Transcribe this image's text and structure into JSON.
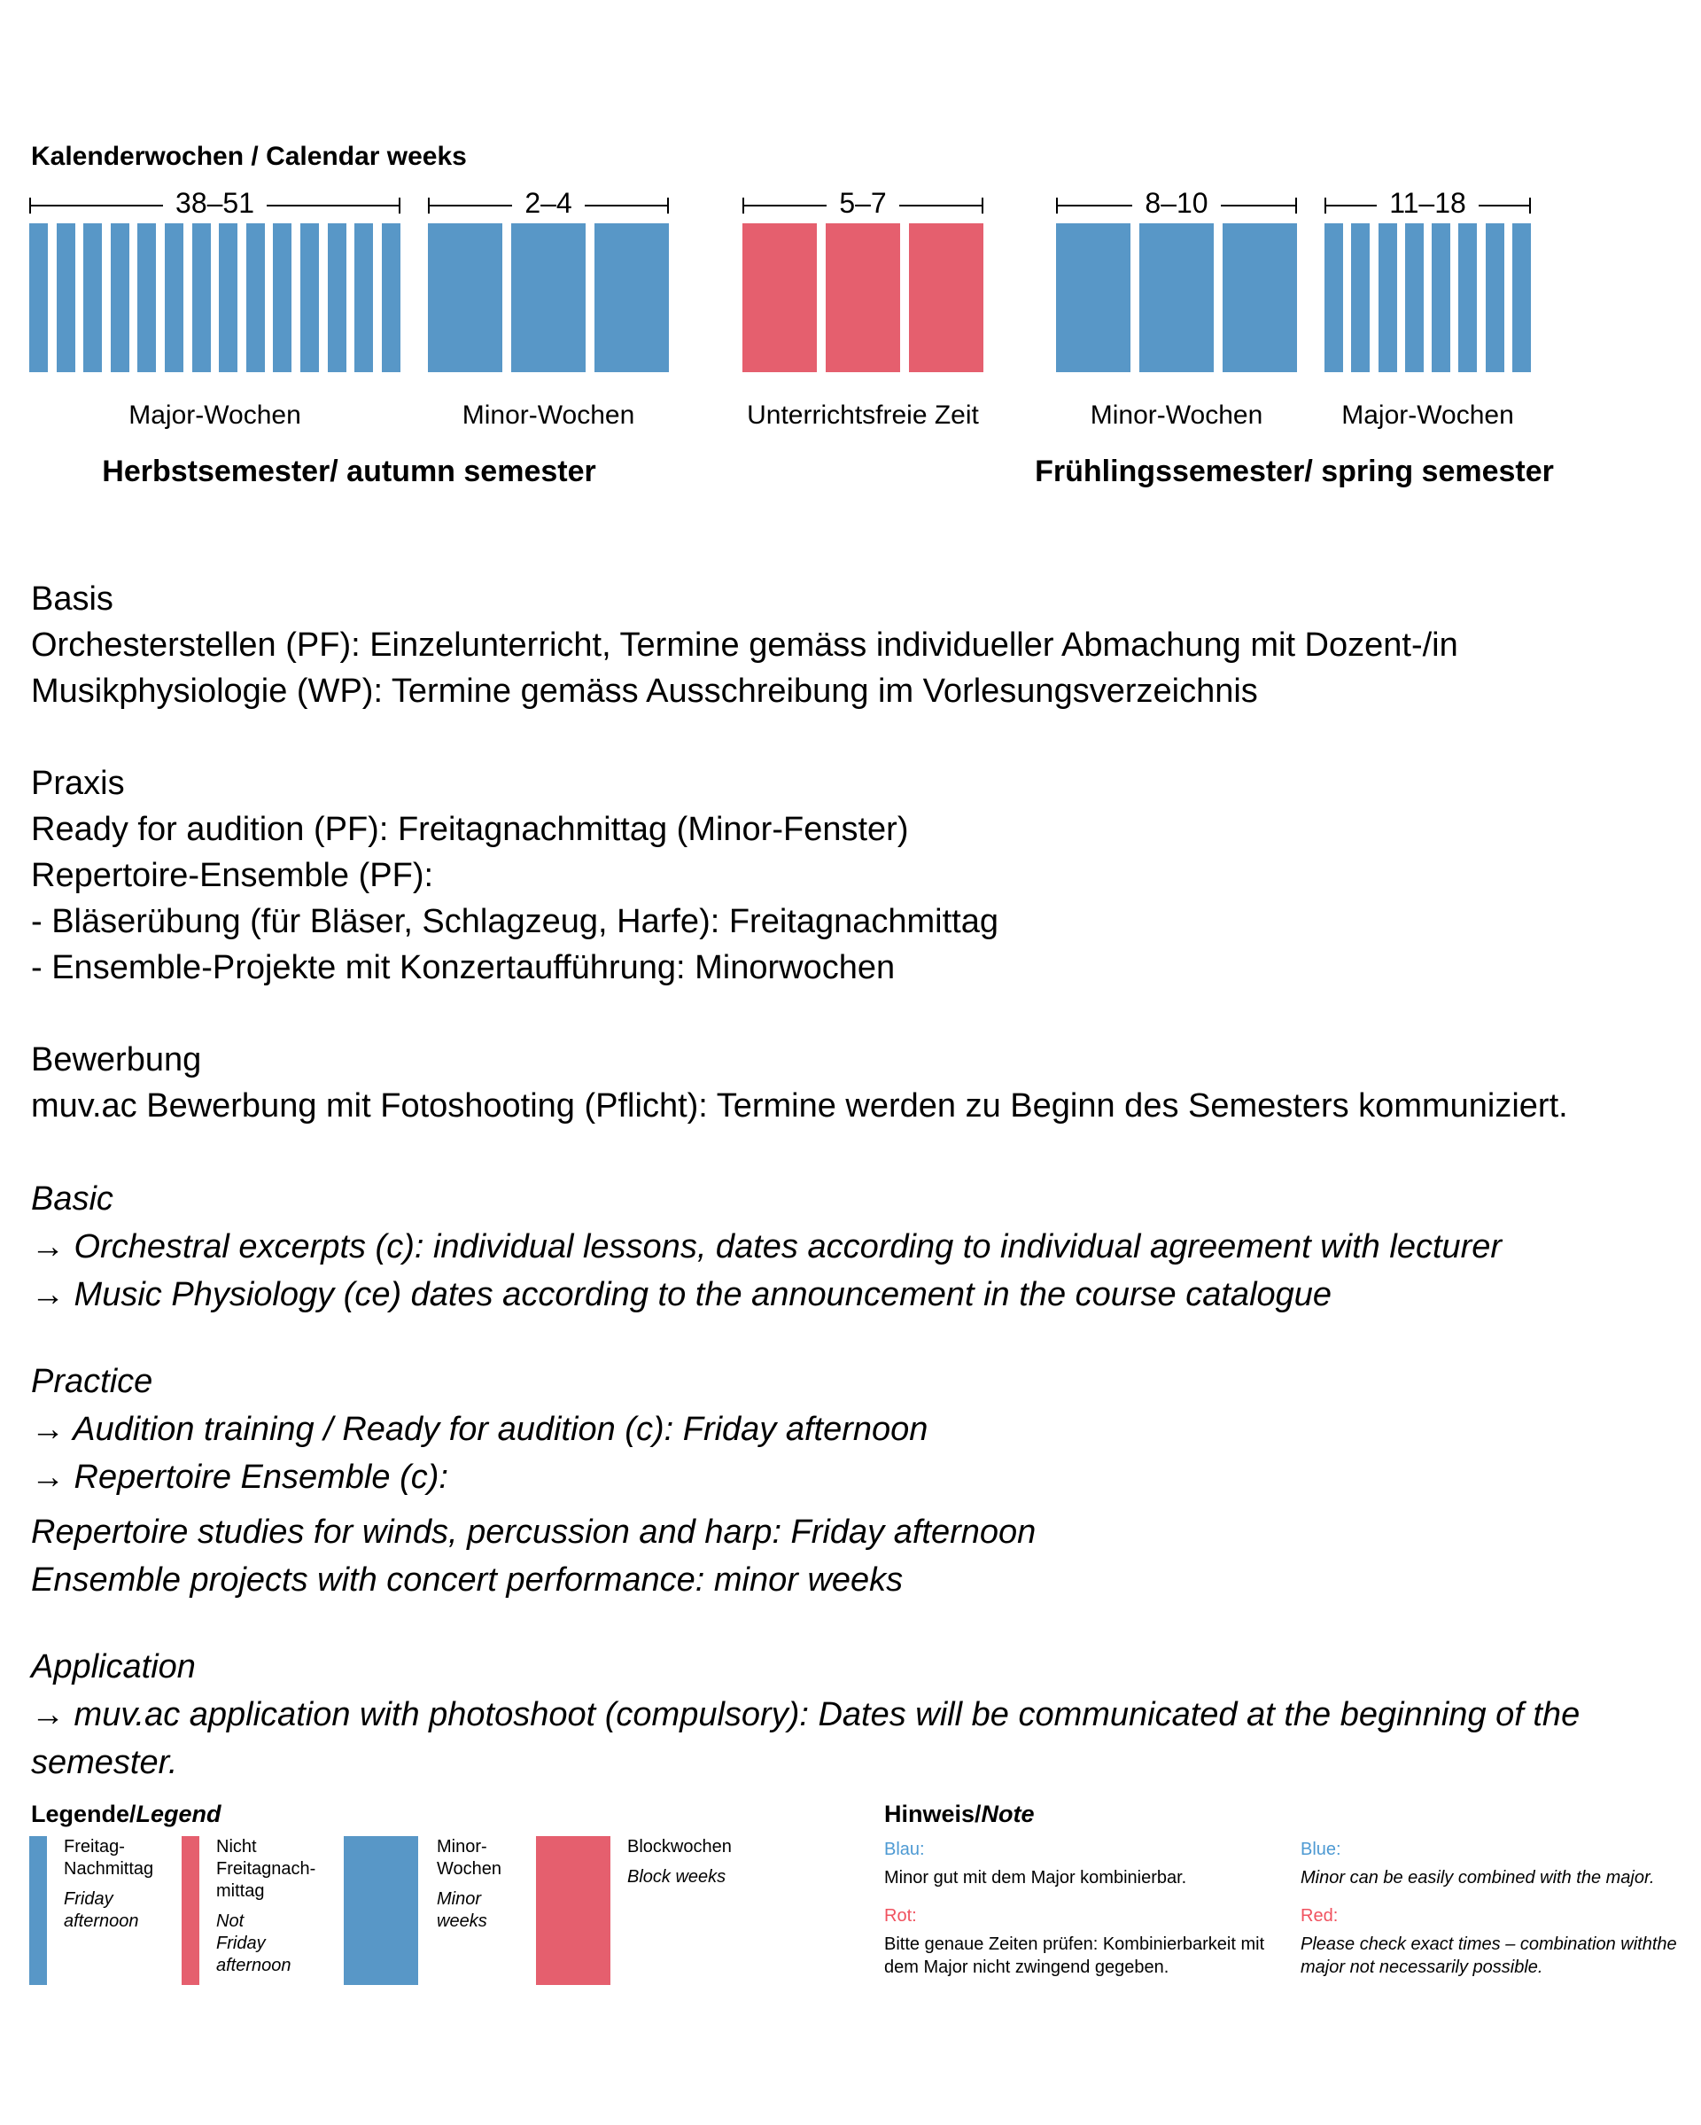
{
  "page": {
    "title": "Kalenderwochen / Calendar weeks"
  },
  "colors": {
    "blue": "#5897c7",
    "red": "#e55f6e",
    "note_blue": "#4e9ad3",
    "note_red": "#f0525f"
  },
  "diagram": {
    "groups": [
      {
        "weeks": "38–51",
        "style": "narrow",
        "color": "blue",
        "bar_count": 14,
        "label": "Major-Wochen"
      },
      {
        "weeks": "2–4",
        "style": "wide",
        "color": "blue",
        "bar_count": 3,
        "label": "Minor-Wochen"
      },
      {
        "weeks": "5–7",
        "style": "wide",
        "color": "red",
        "bar_count": 3,
        "label": "Unterrichtsfreie Zeit"
      },
      {
        "weeks": "8–10",
        "style": "wide",
        "color": "blue",
        "bar_count": 3,
        "label": "Minor-Wochen"
      },
      {
        "weeks": "11–18",
        "style": "narrow",
        "color": "blue",
        "bar_count": 8,
        "label": "Major-Wochen"
      }
    ],
    "semesters": [
      {
        "label": "Herbstsemester/ autumn semester"
      },
      {
        "label": "Frühlingssemester/ spring semester"
      }
    ]
  },
  "body_de": [
    {
      "lines": [
        "Basis",
        "Orchesterstellen (PF): Einzelunterricht, Termine gemäss individueller Abmachung mit Dozent-/in",
        "Musikphysiologie (WP): Termine gemäss Ausschreibung im Vorlesungsverzeichnis"
      ]
    },
    {
      "lines": [
        "Praxis",
        "Ready for audition (PF): Freitagnachmittag (Minor-Fenster)",
        "Repertoire-Ensemble (PF):",
        "- Bläserübung (für Bläser, Schlagzeug, Harfe): Freitagnachmittag",
        "- Ensemble-Projekte mit Konzertaufführung: Minorwochen"
      ]
    },
    {
      "lines": [
        "Bewerbung",
        "muv.ac Bewerbung mit Fotoshooting (Pflicht): Termine werden zu Beginn des Semesters kommuniziert."
      ]
    }
  ],
  "body_en": [
    {
      "lines": [
        "Basic",
        "→ Orchestral excerpts (c): individual lessons, dates according to individual agreement with lecturer",
        "→ Music Physiology (ce) dates according to the announcement in the course catalogue"
      ]
    },
    {
      "lines": [
        "Practice",
        "→ Audition training / Ready for audition (c): Friday afternoon",
        "→ Repertoire Ensemble (c):"
      ]
    },
    {
      "small_gap": true,
      "lines": [
        "Repertoire studies for winds, percussion and harp: Friday afternoon",
        "Ensemble projects with concert performance: minor weeks"
      ]
    },
    {
      "lines": [
        "Application",
        "→ muv.ac application with photoshoot (compulsory): Dates will be communicated at the beginning of the",
        "semester."
      ]
    }
  ],
  "legend": {
    "heading_de": "Legende/",
    "heading_en": "Legend",
    "items": [
      {
        "color": "blue",
        "style": "narrow",
        "label_de": [
          "Freitag-",
          "Nachmittag"
        ],
        "label_en": [
          "Friday",
          "afternoon"
        ]
      },
      {
        "color": "red",
        "style": "narrow",
        "label_de": [
          "Nicht",
          "Freitagnach-",
          "mittag"
        ],
        "label_en": [
          "Not",
          "Friday",
          "afternoon"
        ]
      },
      {
        "color": "blue",
        "style": "wide",
        "label_de": [
          "Minor-",
          "Wochen"
        ],
        "label_en": [
          "Minor",
          "weeks"
        ]
      },
      {
        "color": "red",
        "style": "wide",
        "label_de": [
          "Blockwochen"
        ],
        "label_en": [
          "Block weeks"
        ]
      }
    ]
  },
  "note": {
    "heading_de": "Hinweis/",
    "heading_en": "Note",
    "entries_de": [
      {
        "label": "Blau:",
        "color": "blue",
        "lines": [
          "Minor gut mit dem Major kombinierbar."
        ]
      },
      {
        "label": "Rot:",
        "color": "red",
        "lines": [
          "Bitte genaue Zeiten prüfen: Kombinierbarkeit mit",
          "dem Major nicht zwingend gegeben."
        ]
      }
    ],
    "entries_en": [
      {
        "label": "Blue:",
        "color": "blue",
        "lines": [
          "Minor can be easily combined with the major."
        ]
      },
      {
        "label": "Red:",
        "color": "red",
        "lines": [
          "Please check exact times – combination withthe",
          "major not necessarily possible."
        ]
      }
    ]
  }
}
